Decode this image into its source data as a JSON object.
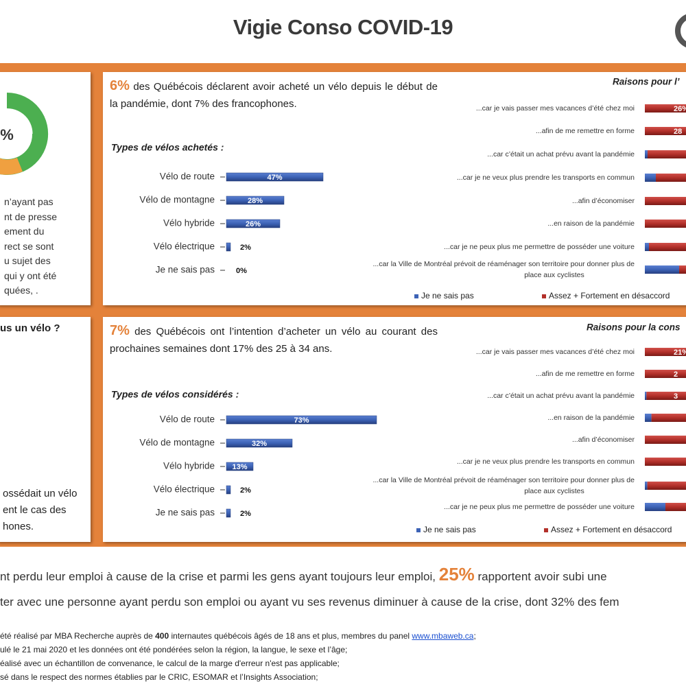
{
  "header": {
    "title": "Vigie Conso COVID-19"
  },
  "left_top": {
    "percent": "%",
    "lines": [
      "n’ayant pas",
      "nt de presse",
      "ement du",
      "rect se sont",
      "u sujet des",
      "qui y ont été",
      "quées, ."
    ]
  },
  "left_bottom": {
    "question": "us un vélo ?",
    "lines": [
      "ossédait un vélo",
      "ent le cas des",
      "hones."
    ]
  },
  "panels": [
    {
      "highlight": "6%",
      "statement": "des Québécois déclarent avoir acheté un vélo depuis le début de la pandémie, dont 7% des francophones.",
      "reasons": {
        "title": "Raisons pour l’",
        "categories": [
          "...car je vais passer mes vacances d’été chez moi",
          "...afin de me remettre en forme",
          "...car c’était un achat prévu avant la pandémie",
          "...car je ne veux plus prendre les transports en commun",
          "...afin d’économiser",
          "...en raison de la pandémie",
          "...car je ne peux plus me permettre de posséder une voiture",
          "...car la Ville de Montréal prévoit de réaménager son territoire pour donner plus de place aux cyclistes"
        ],
        "bar_labels": [
          "26%",
          "28",
          null,
          null,
          null,
          null,
          null,
          null
        ],
        "legend": [
          "Je ne sais pas",
          "Assez + Fortement en désaccord"
        ]
      }
    },
    {
      "highlight": "7%",
      "statement": "des Québécois ont l’intention d’acheter un vélo au courant des prochaines semaines dont 17% des 25 à 34 ans.",
      "reasons": {
        "title": "Raisons pour la cons",
        "categories": [
          "...car je vais passer mes vacances d’été chez moi",
          "...afin de me remettre en forme",
          "...car c’était un achat prévu avant la pandémie",
          "...en raison de la pandémie",
          "...afin d’économiser",
          "...car je ne veux plus prendre les transports en commun",
          "...car la Ville de Montréal prévoit de réaménager son territoire pour donner plus de place aux cyclistes",
          "...car je ne peux plus me permettre de posséder une voiture"
        ],
        "bar_labels": [
          "21%",
          "2",
          "3",
          null,
          null,
          null,
          null,
          null
        ],
        "legend": [
          "Je ne sais pas",
          "Assez + Fortement en désaccord"
        ]
      }
    }
  ],
  "chart_data": [
    {
      "type": "bar",
      "title": "Types de vélos achetés :",
      "categories": [
        "Vélo de route",
        "Vélo de montagne",
        "Vélo hybride",
        "Vélo électrique",
        "Je ne sais pas"
      ],
      "values": [
        47,
        28,
        26,
        2,
        0
      ],
      "value_labels": [
        "47%",
        "28%",
        "26%",
        "2%",
        "0%"
      ],
      "color": "#3d63b6",
      "xlim": [
        0,
        100
      ]
    },
    {
      "type": "bar",
      "title": "Types de vélos considérés :",
      "categories": [
        "Vélo de route",
        "Vélo de montagne",
        "Vélo hybride",
        "Vélo électrique",
        "Je ne sais pas"
      ],
      "values": [
        73,
        32,
        13,
        2,
        2
      ],
      "value_labels": [
        "73%",
        "32%",
        "13%",
        "2%",
        "2%"
      ],
      "color": "#3d63b6",
      "xlim": [
        0,
        100
      ]
    }
  ],
  "bottom_lines": [
    [
      "nt perdu leur emploi à cause de la crise et parmi les gens ayant toujours leur emploi, ",
      "25%",
      " rapportent avoir subi une"
    ],
    [
      "ter avec une personne ayant perdu son emploi ou ayant vu ses revenus diminuer à cause de la crise, dont 32% des fem"
    ]
  ],
  "footnotes": [
    [
      "été réalisé par MBA Recherche auprès de ",
      "400",
      " internautes québécois âgés de 18 ans et plus, membres du panel ",
      "www.mbaweb.ca",
      ";"
    ],
    [
      "ulé le 21 mai 2020 et les données ont été pondérées selon la région, la langue, le sexe et l’âge;"
    ],
    [
      "éalisé avec un échantillon de convenance, le calcul de la marge d'erreur n'est pas applicable;"
    ],
    [
      "sé dans le respect des normes établies par le CRIC, ESOMAR et l’Insights Association;"
    ]
  ]
}
